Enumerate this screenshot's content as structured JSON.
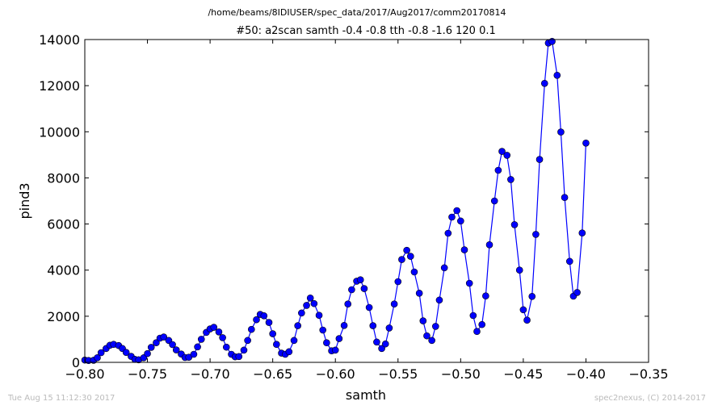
{
  "figure": {
    "path_title": "/home/beams/8IDIUSER/spec_data/2017/Aug2017/comm20170814",
    "footer_left": "Tue Aug 15 11:12:30 2017",
    "footer_right": "spec2nexus, (C) 2014-2017"
  },
  "chart_data": {
    "type": "line",
    "title": "#50: a2scan  samth -0.4 -0.8  tth -0.8 -1.6  120 0.1",
    "xlabel": "samth",
    "ylabel": "pind3",
    "xlim": [
      -0.8,
      -0.35
    ],
    "ylim": [
      0,
      14000
    ],
    "xticks": [
      -0.8,
      -0.75,
      -0.7,
      -0.65,
      -0.6,
      -0.55,
      -0.5,
      -0.45,
      -0.4,
      -0.35
    ],
    "xtick_labels": [
      "−0.80",
      "−0.75",
      "−0.70",
      "−0.65",
      "−0.60",
      "−0.55",
      "−0.50",
      "−0.45",
      "−0.40",
      "−0.35"
    ],
    "yticks": [
      0,
      2000,
      4000,
      6000,
      8000,
      10000,
      12000,
      14000
    ],
    "ytick_labels": [
      "0",
      "2000",
      "4000",
      "6000",
      "8000",
      "10000",
      "12000",
      "14000"
    ],
    "grid": false,
    "series": [
      {
        "color": "#0000ff",
        "marker": "circle",
        "x": [
          -0.8,
          -0.797,
          -0.793,
          -0.79,
          -0.787,
          -0.783,
          -0.78,
          -0.777,
          -0.773,
          -0.77,
          -0.767,
          -0.763,
          -0.76,
          -0.757,
          -0.753,
          -0.75,
          -0.747,
          -0.743,
          -0.74,
          -0.737,
          -0.733,
          -0.73,
          -0.727,
          -0.723,
          -0.72,
          -0.717,
          -0.713,
          -0.71,
          -0.707,
          -0.703,
          -0.7,
          -0.697,
          -0.693,
          -0.69,
          -0.687,
          -0.683,
          -0.68,
          -0.677,
          -0.673,
          -0.67,
          -0.667,
          -0.663,
          -0.66,
          -0.657,
          -0.653,
          -0.65,
          -0.647,
          -0.643,
          -0.64,
          -0.637,
          -0.633,
          -0.63,
          -0.627,
          -0.623,
          -0.62,
          -0.617,
          -0.613,
          -0.61,
          -0.607,
          -0.603,
          -0.6,
          -0.597,
          -0.593,
          -0.59,
          -0.587,
          -0.583,
          -0.58,
          -0.577,
          -0.573,
          -0.57,
          -0.567,
          -0.563,
          -0.56,
          -0.557,
          -0.553,
          -0.55,
          -0.547,
          -0.543,
          -0.54,
          -0.537,
          -0.533,
          -0.53,
          -0.527,
          -0.523,
          -0.52,
          -0.517,
          -0.513,
          -0.51,
          -0.507,
          -0.503,
          -0.5,
          -0.497,
          -0.493,
          -0.49,
          -0.487,
          -0.483,
          -0.48,
          -0.477,
          -0.473,
          -0.47,
          -0.467,
          -0.463,
          -0.46,
          -0.457,
          -0.453,
          -0.45,
          -0.447,
          -0.443,
          -0.44,
          -0.437,
          -0.433,
          -0.43,
          -0.427,
          -0.423,
          -0.42,
          -0.417,
          -0.413,
          -0.41,
          -0.407,
          -0.403,
          -0.4
        ],
        "y": [
          100,
          80,
          90,
          200,
          420,
          600,
          740,
          780,
          730,
          600,
          430,
          260,
          130,
          110,
          200,
          380,
          650,
          850,
          1050,
          1100,
          950,
          770,
          540,
          360,
          210,
          220,
          350,
          670,
          1000,
          1300,
          1450,
          1520,
          1320,
          1070,
          660,
          350,
          240,
          250,
          530,
          950,
          1430,
          1850,
          2080,
          2020,
          1730,
          1240,
          780,
          400,
          350,
          460,
          950,
          1590,
          2140,
          2470,
          2790,
          2550,
          2040,
          1400,
          850,
          500,
          530,
          1030,
          1600,
          2530,
          3150,
          3520,
          3580,
          3200,
          2380,
          1590,
          880,
          600,
          800,
          1490,
          2530,
          3500,
          4460,
          4860,
          4600,
          3920,
          3000,
          1800,
          1150,
          950,
          1560,
          2700,
          4100,
          5600,
          6300,
          6580,
          6130,
          4880,
          3430,
          2030,
          1340,
          1640,
          2880,
          5100,
          7000,
          8330,
          9150,
          8980,
          7930,
          5970,
          4000,
          2280,
          1830,
          2860,
          5550,
          8800,
          12100,
          13850,
          13920,
          12450,
          9990,
          7150,
          4380,
          2870,
          3030,
          5610,
          9510
        ]
      }
    ]
  }
}
